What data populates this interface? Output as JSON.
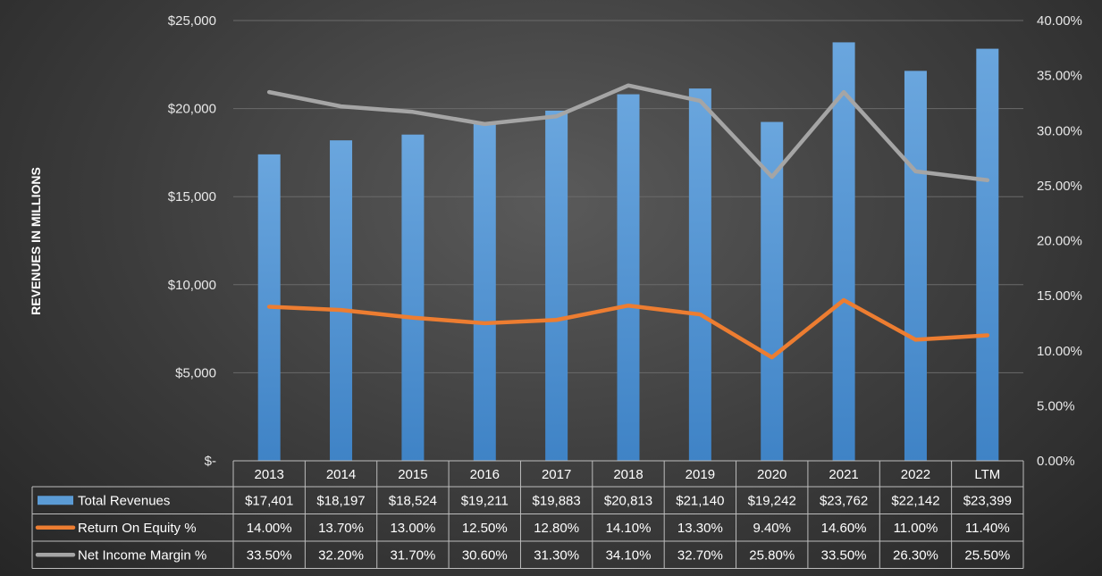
{
  "chart_data": {
    "type": "bar",
    "title": "",
    "ylabel": "REVENUES IN MILLIONS",
    "categories": [
      "2013",
      "2014",
      "2015",
      "2016",
      "2017",
      "2018",
      "2019",
      "2020",
      "2021",
      "2022",
      "LTM"
    ],
    "ylim": [
      0,
      25000
    ],
    "y2lim": [
      0,
      40
    ],
    "y_ticks": [
      "$-",
      "$5,000",
      "$10,000",
      "$15,000",
      "$20,000",
      "$25,000"
    ],
    "y2_ticks": [
      "0.00%",
      "5.00%",
      "10.00%",
      "15.00%",
      "20.00%",
      "25.00%",
      "30.00%",
      "35.00%",
      "40.00%"
    ],
    "grid": true,
    "legend": "data-table",
    "series": [
      {
        "name": "Total Revenues",
        "type": "bar",
        "axis": "left",
        "color": "#5b9bd5",
        "values": [
          17401,
          18197,
          18524,
          19211,
          19883,
          20813,
          21140,
          19242,
          23762,
          22142,
          23399
        ],
        "labels": [
          "$17,401",
          "$18,197",
          "$18,524",
          "$19,211",
          "$19,883",
          "$20,813",
          "$21,140",
          "$19,242",
          "$23,762",
          "$22,142",
          "$23,399"
        ]
      },
      {
        "name": "Return On Equity %",
        "type": "line",
        "axis": "right",
        "color": "#ed7d31",
        "values": [
          14.0,
          13.7,
          13.0,
          12.5,
          12.8,
          14.1,
          13.3,
          9.4,
          14.6,
          11.0,
          11.4
        ],
        "labels": [
          "14.00%",
          "13.70%",
          "13.00%",
          "12.50%",
          "12.80%",
          "14.10%",
          "13.30%",
          "9.40%",
          "14.60%",
          "11.00%",
          "11.40%"
        ]
      },
      {
        "name": "Net Income Margin %",
        "type": "line",
        "axis": "right",
        "color": "#a5a5a5",
        "values": [
          33.5,
          32.2,
          31.7,
          30.6,
          31.3,
          34.1,
          32.7,
          25.8,
          33.5,
          26.3,
          25.5
        ],
        "labels": [
          "33.50%",
          "32.20%",
          "31.70%",
          "30.60%",
          "31.30%",
          "34.10%",
          "32.70%",
          "25.80%",
          "33.50%",
          "26.30%",
          "25.50%"
        ]
      }
    ]
  }
}
